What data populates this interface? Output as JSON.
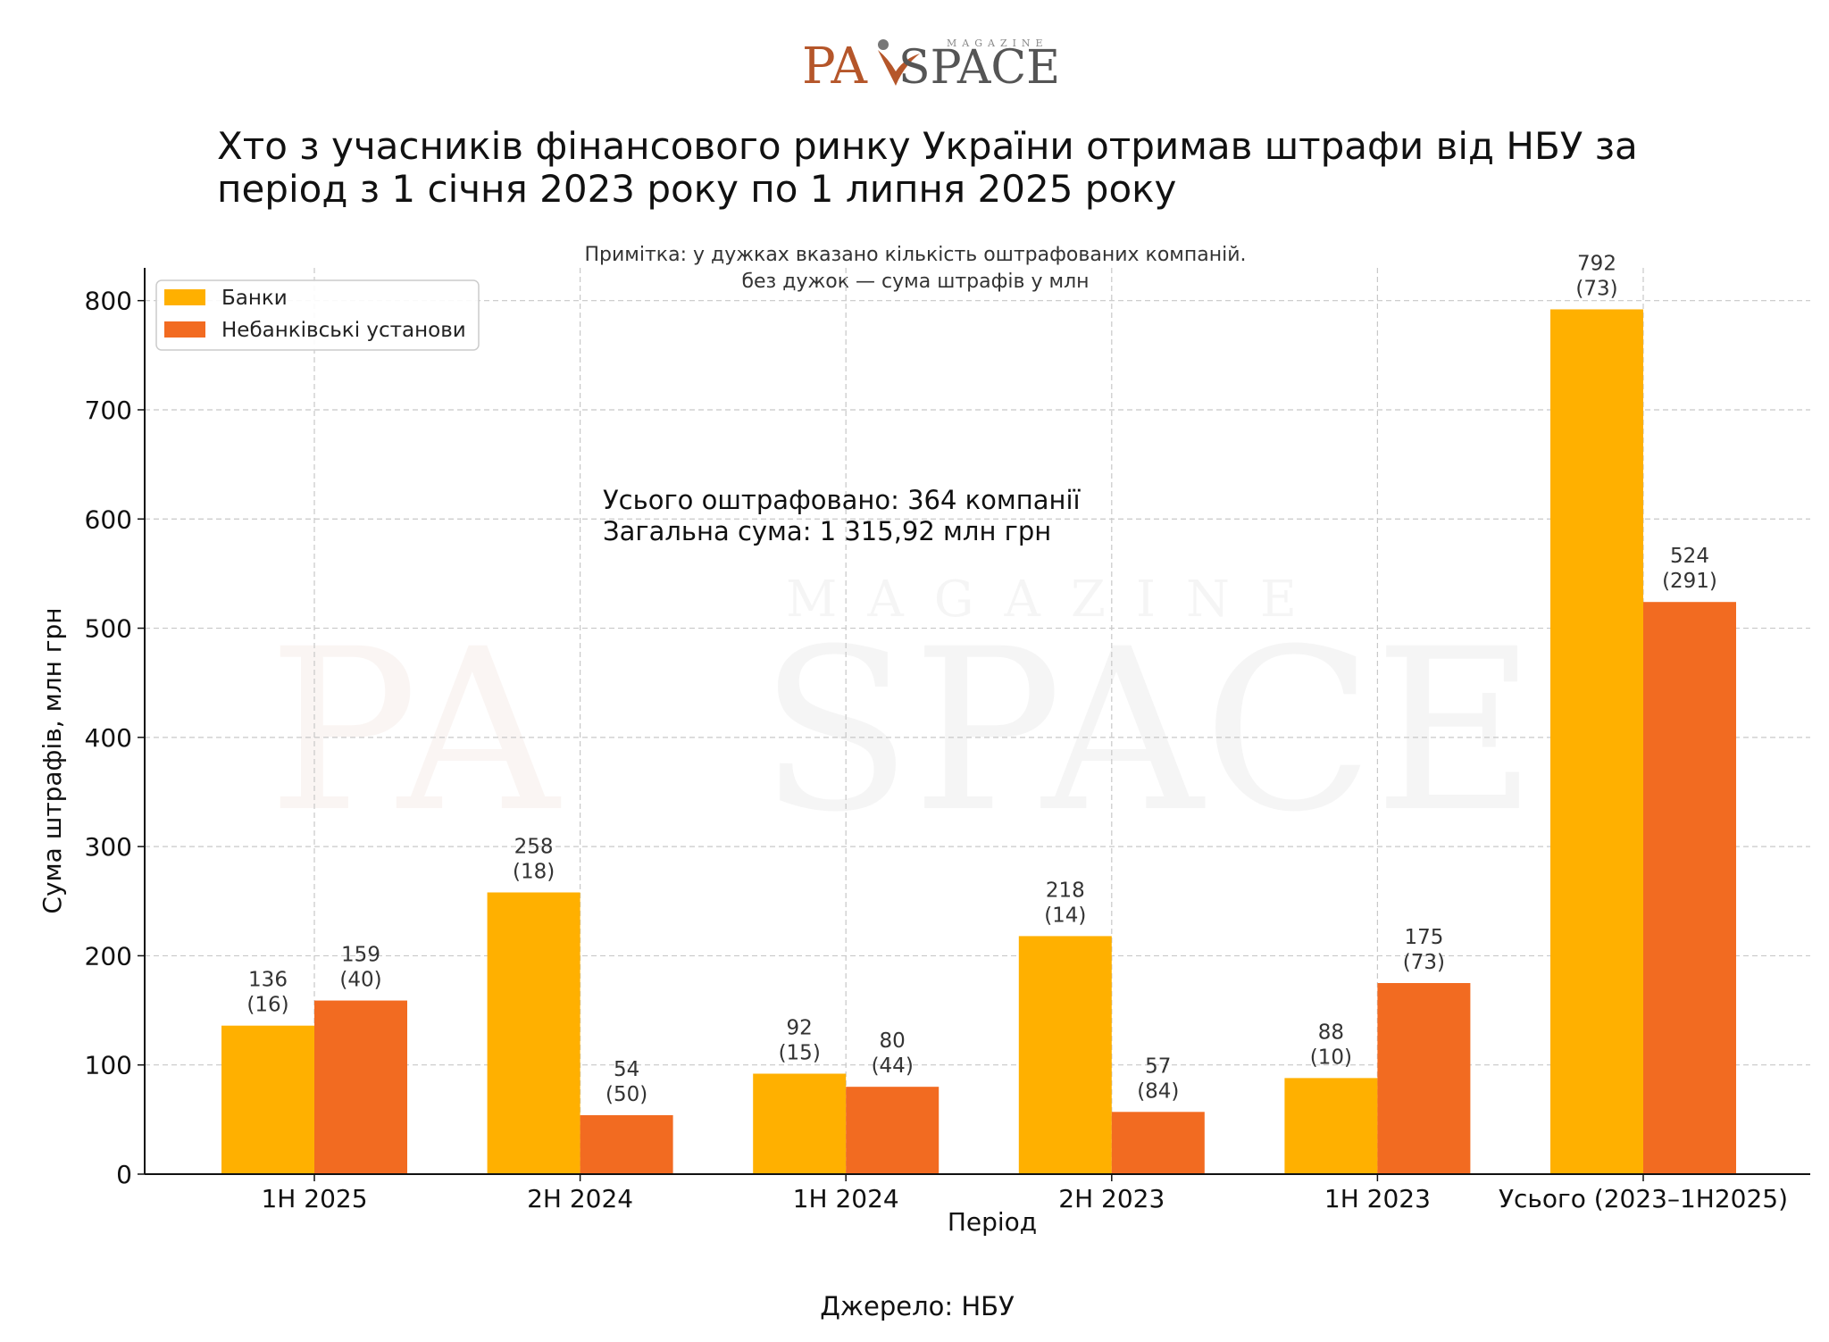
{
  "logo": {
    "left": "PA",
    "right": "SPACE",
    "top": "MAGAZINE"
  },
  "colors": {
    "banks": "#FFB000",
    "nonbanks": "#F26B21",
    "logo_left": "#B5562A",
    "logo_right": "#555555"
  },
  "chart_data": {
    "type": "bar",
    "title": [
      "Хто з учасників фінансового ринку України отримав штрафи від НБУ за",
      "період з 1 січня 2023 року по 1 липня 2025 року"
    ],
    "note": [
      "Примітка: у дужках вказано кількість оштрафованих компаній.",
      "без дужок — сума штрафів у млн"
    ],
    "xlabel": "Період",
    "ylabel": "Сума штрафів, млн грн",
    "ylim": [
      0,
      830
    ],
    "yticks": [
      0,
      100,
      200,
      300,
      400,
      500,
      600,
      700,
      800
    ],
    "grid": true,
    "legend_position": "top-left",
    "categories": [
      "1H 2025",
      "2H 2024",
      "1H 2024",
      "2H 2023",
      "1H 2023",
      "Усього (2023–1H2025)"
    ],
    "series": [
      {
        "name": "Банки",
        "color_key": "banks",
        "values": [
          136,
          258,
          92,
          218,
          88,
          792
        ],
        "counts": [
          "(16)",
          "(18)",
          "(15)",
          "(14)",
          "(10)",
          "(73)"
        ]
      },
      {
        "name": "Небанківські установи",
        "color_key": "nonbanks",
        "values": [
          159,
          54,
          80,
          57,
          175,
          524
        ],
        "counts": [
          "(40)",
          "(50)",
          "(44)",
          "(84)",
          "(73)",
          "(291)"
        ]
      }
    ],
    "annotation": [
      "Усього оштрафовано: 364 компанії",
      "Загальна сума: 1 315,92 млн грн"
    ],
    "source": "Джерело: НБУ"
  }
}
